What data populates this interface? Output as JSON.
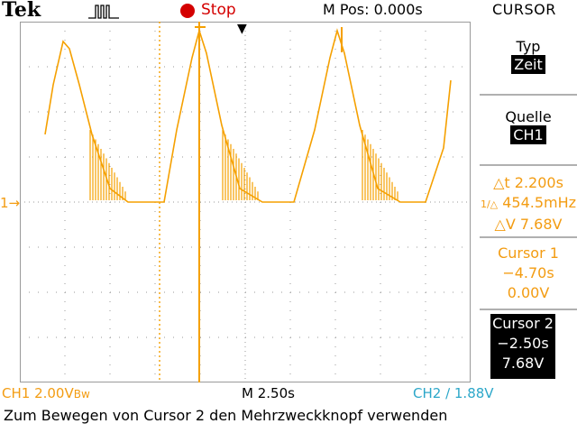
{
  "header": {
    "brand": "Tek",
    "run_status": "Stop",
    "m_pos_label": "M Pos: 0.000s",
    "menu_title": "CURSOR"
  },
  "sidebar": {
    "typ_label": "Typ",
    "typ_value": "Zeit",
    "quelle_label": "Quelle",
    "quelle_value": "CH1",
    "delta_t": "△t 2.200s",
    "freq": "454.5mHz",
    "delta_v": "△V 7.68V",
    "cursor1": {
      "title": "Cursor 1",
      "time": "−4.70s",
      "volt": "0.00V"
    },
    "cursor2": {
      "title": "Cursor 2",
      "time": "−2.50s",
      "volt": "7.68V"
    }
  },
  "footer": {
    "ch1_scale": "CH1  2.00V",
    "ch1_bw_glyph": "Bw",
    "m_scale": "M 2.50s",
    "trigger_info": "CH2 ∕ 1.88V",
    "hint": "Zum Bewegen von Cursor 2 den Mehrzweckknopf verwenden"
  },
  "markers": {
    "ch1_ground": "1→",
    "trigger_position": "▼"
  },
  "colors": {
    "trace": "#f5a000",
    "grid": "#9a9a9a",
    "run_led": "#d40000",
    "ch2_text": "#2ca7c9"
  },
  "waveform": {
    "volts_per_div": 2.0,
    "seconds_per_div": 2.5,
    "ground_level_div": 0,
    "cursor1_time_s": -4.7,
    "cursor2_time_s": -2.5
  }
}
